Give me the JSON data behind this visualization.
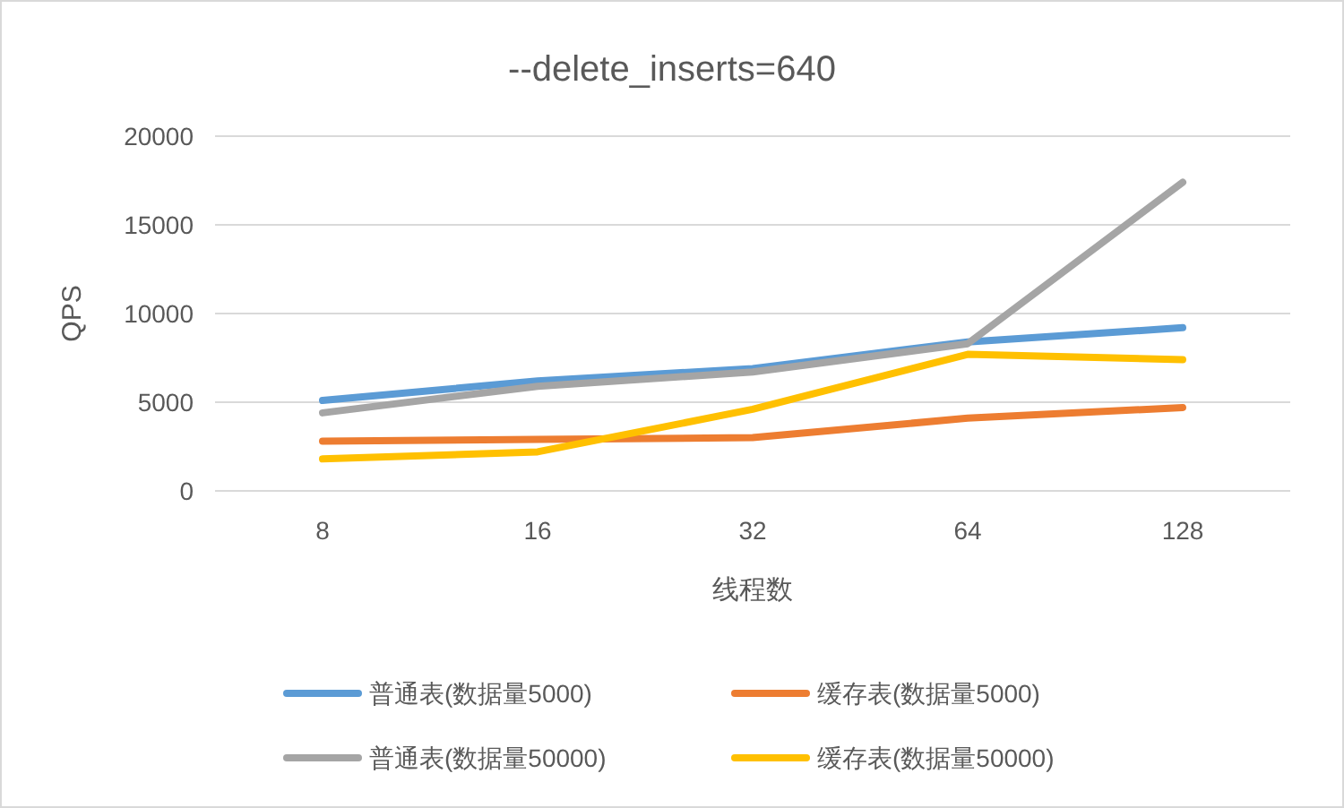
{
  "chart_data": {
    "type": "line",
    "title": "--delete_inserts=640",
    "xlabel": "线程数",
    "ylabel": "QPS",
    "categories": [
      "8",
      "16",
      "32",
      "64",
      "128"
    ],
    "series": [
      {
        "name": "普通表(数据量5000)",
        "color": "#5b9bd5",
        "values": [
          5100,
          6200,
          6900,
          8400,
          9200
        ]
      },
      {
        "name": "缓存表(数据量5000)",
        "color": "#ed7d31",
        "values": [
          2800,
          2900,
          3000,
          4100,
          4700
        ]
      },
      {
        "name": "普通表(数据量50000)",
        "color": "#a5a5a5",
        "values": [
          4400,
          5900,
          6700,
          8300,
          17400
        ]
      },
      {
        "name": "缓存表(数据量50000)",
        "color": "#ffc000",
        "values": [
          1800,
          2200,
          4600,
          7700,
          7400
        ]
      }
    ],
    "ylim": [
      0,
      20000
    ],
    "yticks": [
      0,
      5000,
      10000,
      15000,
      20000
    ],
    "grid": "y",
    "legend": "bottom"
  }
}
